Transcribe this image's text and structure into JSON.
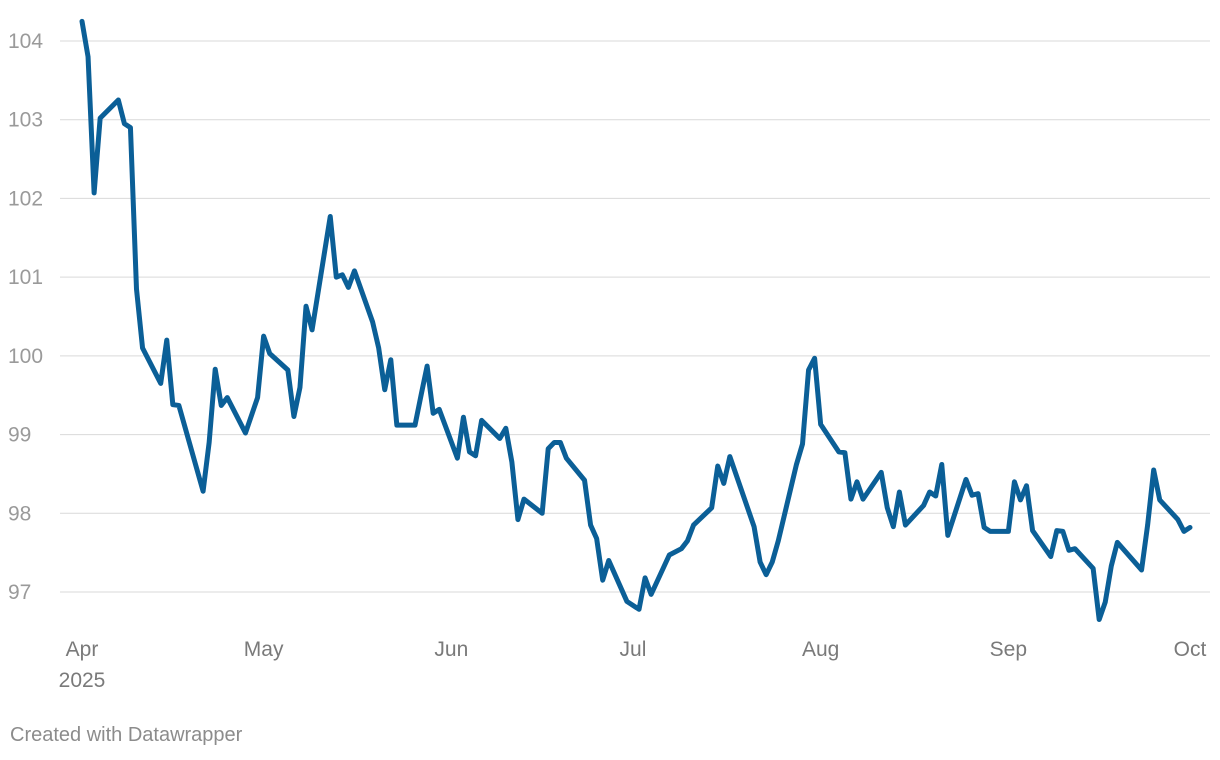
{
  "chart_data": {
    "type": "line",
    "title": "",
    "xlabel": "",
    "ylabel": "",
    "x_range": [
      "2025-04-01",
      "2025-10-01"
    ],
    "ylim": [
      96.5,
      104.4
    ],
    "yticks": [
      97,
      98,
      99,
      100,
      101,
      102,
      103,
      104
    ],
    "xticks": [
      {
        "date": "2025-04-01",
        "label": "Apr",
        "sublabel": "2025"
      },
      {
        "date": "2025-05-01",
        "label": "May"
      },
      {
        "date": "2025-06-01",
        "label": "Jun"
      },
      {
        "date": "2025-07-01",
        "label": "Jul"
      },
      {
        "date": "2025-08-01",
        "label": "Aug"
      },
      {
        "date": "2025-09-01",
        "label": "Sep"
      },
      {
        "date": "2025-10-01",
        "label": "Oct"
      }
    ],
    "grid": "horizontal",
    "legend": "none",
    "colors": {
      "line": "#0b5f97",
      "grid": "#d9d9d9"
    },
    "series": [
      {
        "points": [
          [
            "2025-04-01",
            104.25
          ],
          [
            "2025-04-02",
            103.8
          ],
          [
            "2025-04-03",
            102.07
          ],
          [
            "2025-04-04",
            103.02
          ],
          [
            "2025-04-07",
            103.25
          ],
          [
            "2025-04-08",
            102.95
          ],
          [
            "2025-04-09",
            102.9
          ],
          [
            "2025-04-10",
            100.85
          ],
          [
            "2025-04-11",
            100.1
          ],
          [
            "2025-04-14",
            99.65
          ],
          [
            "2025-04-15",
            100.2
          ],
          [
            "2025-04-16",
            99.38
          ],
          [
            "2025-04-17",
            99.37
          ],
          [
            "2025-04-21",
            98.28
          ],
          [
            "2025-04-22",
            98.9
          ],
          [
            "2025-04-23",
            99.83
          ],
          [
            "2025-04-24",
            99.37
          ],
          [
            "2025-04-25",
            99.47
          ],
          [
            "2025-04-28",
            99.02
          ],
          [
            "2025-04-30",
            99.47
          ],
          [
            "2025-05-01",
            100.25
          ],
          [
            "2025-05-02",
            100.03
          ],
          [
            "2025-05-05",
            99.82
          ],
          [
            "2025-05-06",
            99.23
          ],
          [
            "2025-05-07",
            99.6
          ],
          [
            "2025-05-08",
            100.63
          ],
          [
            "2025-05-09",
            100.33
          ],
          [
            "2025-05-12",
            101.77
          ],
          [
            "2025-05-13",
            101.0
          ],
          [
            "2025-05-14",
            101.03
          ],
          [
            "2025-05-15",
            100.87
          ],
          [
            "2025-05-16",
            101.08
          ],
          [
            "2025-05-19",
            100.43
          ],
          [
            "2025-05-20",
            100.1
          ],
          [
            "2025-05-21",
            99.57
          ],
          [
            "2025-05-22",
            99.95
          ],
          [
            "2025-05-23",
            99.12
          ],
          [
            "2025-05-26",
            99.12
          ],
          [
            "2025-05-27",
            99.5
          ],
          [
            "2025-05-28",
            99.87
          ],
          [
            "2025-05-29",
            99.27
          ],
          [
            "2025-05-30",
            99.32
          ],
          [
            "2025-06-02",
            98.7
          ],
          [
            "2025-06-03",
            99.22
          ],
          [
            "2025-06-04",
            98.78
          ],
          [
            "2025-06-05",
            98.73
          ],
          [
            "2025-06-06",
            99.18
          ],
          [
            "2025-06-09",
            98.95
          ],
          [
            "2025-06-10",
            99.08
          ],
          [
            "2025-06-11",
            98.65
          ],
          [
            "2025-06-12",
            97.92
          ],
          [
            "2025-06-13",
            98.18
          ],
          [
            "2025-06-16",
            98.0
          ],
          [
            "2025-06-17",
            98.82
          ],
          [
            "2025-06-18",
            98.9
          ],
          [
            "2025-06-19",
            98.9
          ],
          [
            "2025-06-20",
            98.7
          ],
          [
            "2025-06-23",
            98.42
          ],
          [
            "2025-06-24",
            97.85
          ],
          [
            "2025-06-25",
            97.68
          ],
          [
            "2025-06-26",
            97.15
          ],
          [
            "2025-06-27",
            97.4
          ],
          [
            "2025-06-30",
            96.88
          ],
          [
            "2025-07-02",
            96.78
          ],
          [
            "2025-07-03",
            97.18
          ],
          [
            "2025-07-04",
            96.97
          ],
          [
            "2025-07-07",
            97.47
          ],
          [
            "2025-07-09",
            97.55
          ],
          [
            "2025-07-10",
            97.65
          ],
          [
            "2025-07-11",
            97.85
          ],
          [
            "2025-07-14",
            98.07
          ],
          [
            "2025-07-15",
            98.6
          ],
          [
            "2025-07-16",
            98.38
          ],
          [
            "2025-07-17",
            98.72
          ],
          [
            "2025-07-21",
            97.83
          ],
          [
            "2025-07-22",
            97.38
          ],
          [
            "2025-07-23",
            97.22
          ],
          [
            "2025-07-24",
            97.38
          ],
          [
            "2025-07-25",
            97.65
          ],
          [
            "2025-07-28",
            98.62
          ],
          [
            "2025-07-29",
            98.88
          ],
          [
            "2025-07-30",
            99.82
          ],
          [
            "2025-07-31",
            99.97
          ],
          [
            "2025-08-01",
            99.13
          ],
          [
            "2025-08-04",
            98.78
          ],
          [
            "2025-08-05",
            98.77
          ],
          [
            "2025-08-06",
            98.18
          ],
          [
            "2025-08-07",
            98.4
          ],
          [
            "2025-08-08",
            98.18
          ],
          [
            "2025-08-11",
            98.52
          ],
          [
            "2025-08-12",
            98.07
          ],
          [
            "2025-08-13",
            97.83
          ],
          [
            "2025-08-14",
            98.27
          ],
          [
            "2025-08-15",
            97.85
          ],
          [
            "2025-08-18",
            98.1
          ],
          [
            "2025-08-19",
            98.27
          ],
          [
            "2025-08-20",
            98.22
          ],
          [
            "2025-08-21",
            98.62
          ],
          [
            "2025-08-22",
            97.72
          ],
          [
            "2025-08-25",
            98.43
          ],
          [
            "2025-08-26",
            98.23
          ],
          [
            "2025-08-27",
            98.25
          ],
          [
            "2025-08-28",
            97.82
          ],
          [
            "2025-08-29",
            97.77
          ],
          [
            "2025-09-01",
            97.77
          ],
          [
            "2025-09-02",
            98.4
          ],
          [
            "2025-09-03",
            98.17
          ],
          [
            "2025-09-04",
            98.35
          ],
          [
            "2025-09-05",
            97.78
          ],
          [
            "2025-09-08",
            97.45
          ],
          [
            "2025-09-09",
            97.78
          ],
          [
            "2025-09-10",
            97.77
          ],
          [
            "2025-09-11",
            97.53
          ],
          [
            "2025-09-12",
            97.55
          ],
          [
            "2025-09-15",
            97.3
          ],
          [
            "2025-09-16",
            96.65
          ],
          [
            "2025-09-17",
            96.87
          ],
          [
            "2025-09-18",
            97.33
          ],
          [
            "2025-09-19",
            97.63
          ],
          [
            "2025-09-23",
            97.28
          ],
          [
            "2025-09-24",
            97.85
          ],
          [
            "2025-09-25",
            98.55
          ],
          [
            "2025-09-26",
            98.17
          ],
          [
            "2025-09-29",
            97.92
          ],
          [
            "2025-09-30",
            97.77
          ],
          [
            "2025-10-01",
            97.82
          ]
        ]
      }
    ]
  },
  "footer": {
    "credit": "Created with Datawrapper"
  }
}
